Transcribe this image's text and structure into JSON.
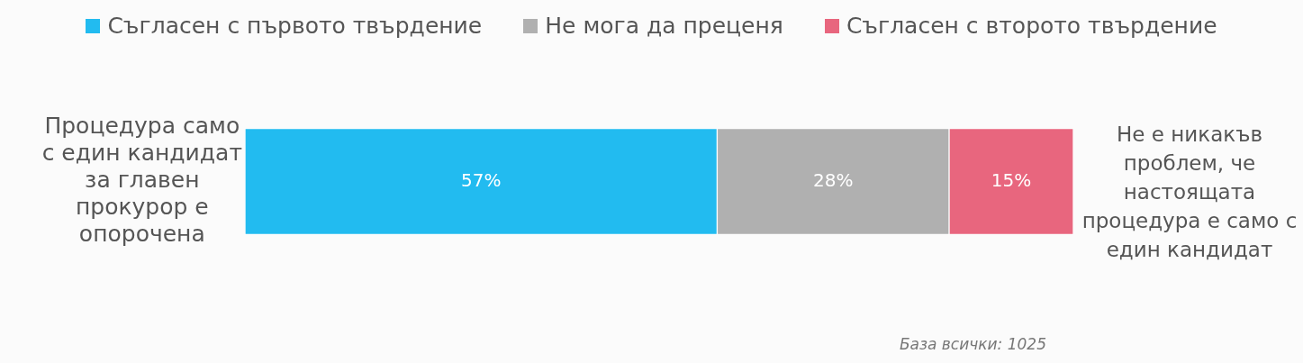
{
  "chart_data": {
    "type": "bar",
    "orientation": "horizontal",
    "stacked": true,
    "legend": "top",
    "tick_labels": "y",
    "categories": [
      "Процедура само с един кандидат за главен прокурор е опорочена"
    ],
    "series": [
      {
        "name": "Съгласен с първото твърдение",
        "color": "#22bbf0",
        "values": [
          57
        ],
        "value_labels": [
          "57%"
        ]
      },
      {
        "name": "Не мога да преценя",
        "color": "#b0b0b0",
        "values": [
          28
        ],
        "value_labels": [
          "28%"
        ]
      },
      {
        "name": "Съгласен с второто твърдение",
        "color": "#e8667e",
        "values": [
          15
        ],
        "value_labels": [
          "15%"
        ]
      }
    ],
    "annotations": [
      "Не е никакъв проблем, че настоящата процедура е само с един кандидат",
      "База всички: 1025"
    ]
  }
}
